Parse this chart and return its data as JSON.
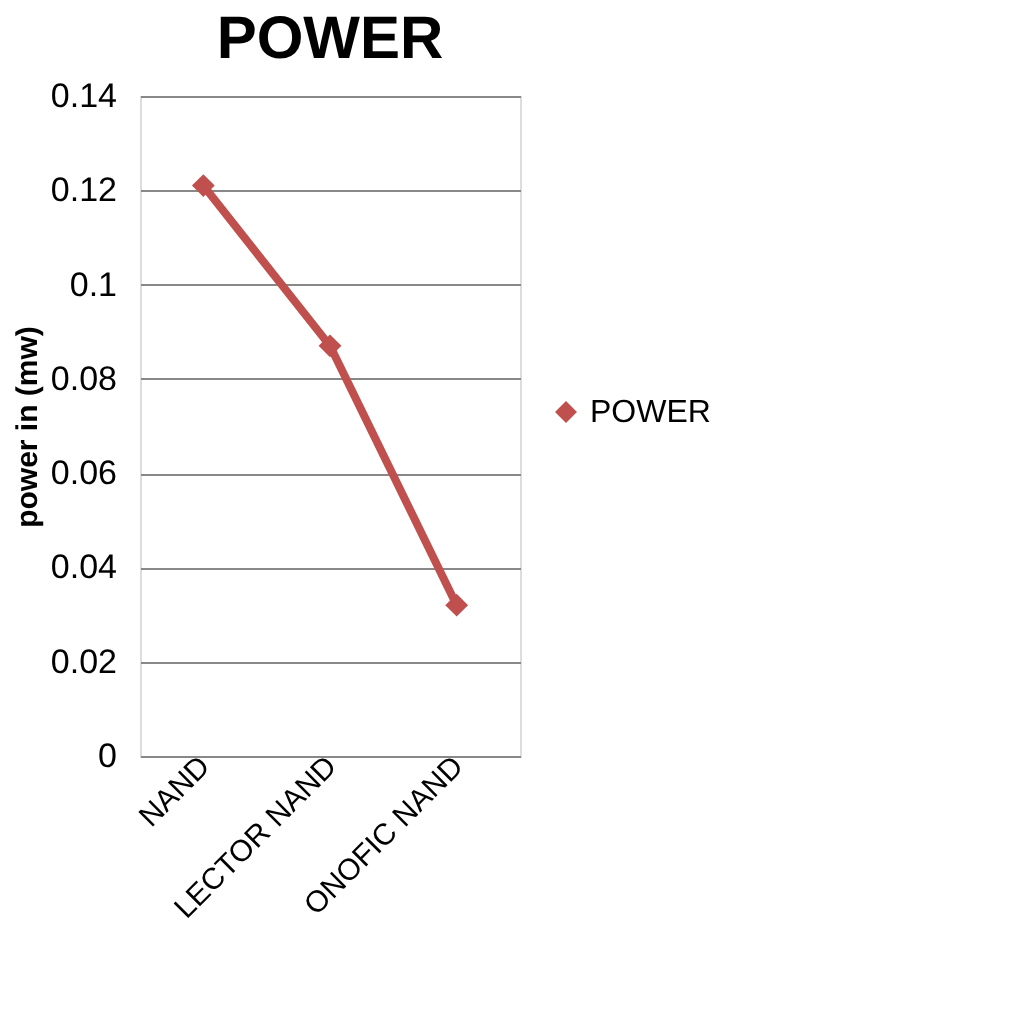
{
  "chart_data": {
    "type": "line",
    "title": "POWER",
    "ylabel": "power in (mw)",
    "categories": [
      "NAND",
      "LECTOR NAND",
      "ONOFIC NAND"
    ],
    "series": [
      {
        "name": "POWER",
        "color": "#c0504d",
        "values": [
          0.121,
          0.087,
          0.032
        ]
      }
    ],
    "ylim": [
      0,
      0.14
    ],
    "yticks": [
      0,
      0.02,
      0.04,
      0.06,
      0.08,
      0.1,
      0.12,
      0.14
    ],
    "grid": "y",
    "legend": "right",
    "marker": "diamond",
    "line_style": "solid"
  }
}
